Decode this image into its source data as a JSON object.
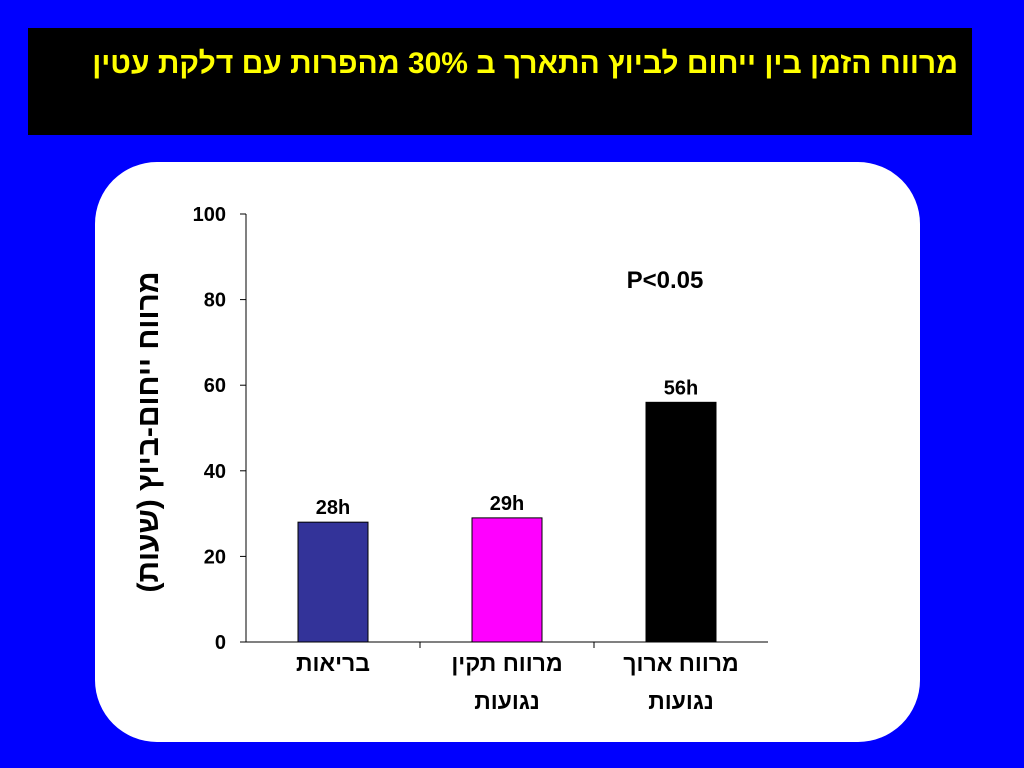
{
  "chart_data": {
    "type": "bar",
    "title": "מרווח הזמן בין ייחום לביוץ התארך ב 30% מהפרות עם דלקת עטין",
    "y_label": "מרווח ייחום-ביוץ (שעות)",
    "annotation": "P<0.05",
    "categories": [
      "בריאות",
      "מרווח תקין נגועות",
      "מרווח ארוך נגועות"
    ],
    "values": [
      28,
      29,
      56
    ],
    "value_labels": [
      "28h",
      "29h",
      "56h"
    ],
    "colors": [
      "#333399",
      "#ff00ff",
      "#000000"
    ],
    "ylim": [
      0,
      100
    ],
    "yticks": [
      0,
      20,
      40,
      60,
      80,
      100
    ],
    "grid": false
  }
}
